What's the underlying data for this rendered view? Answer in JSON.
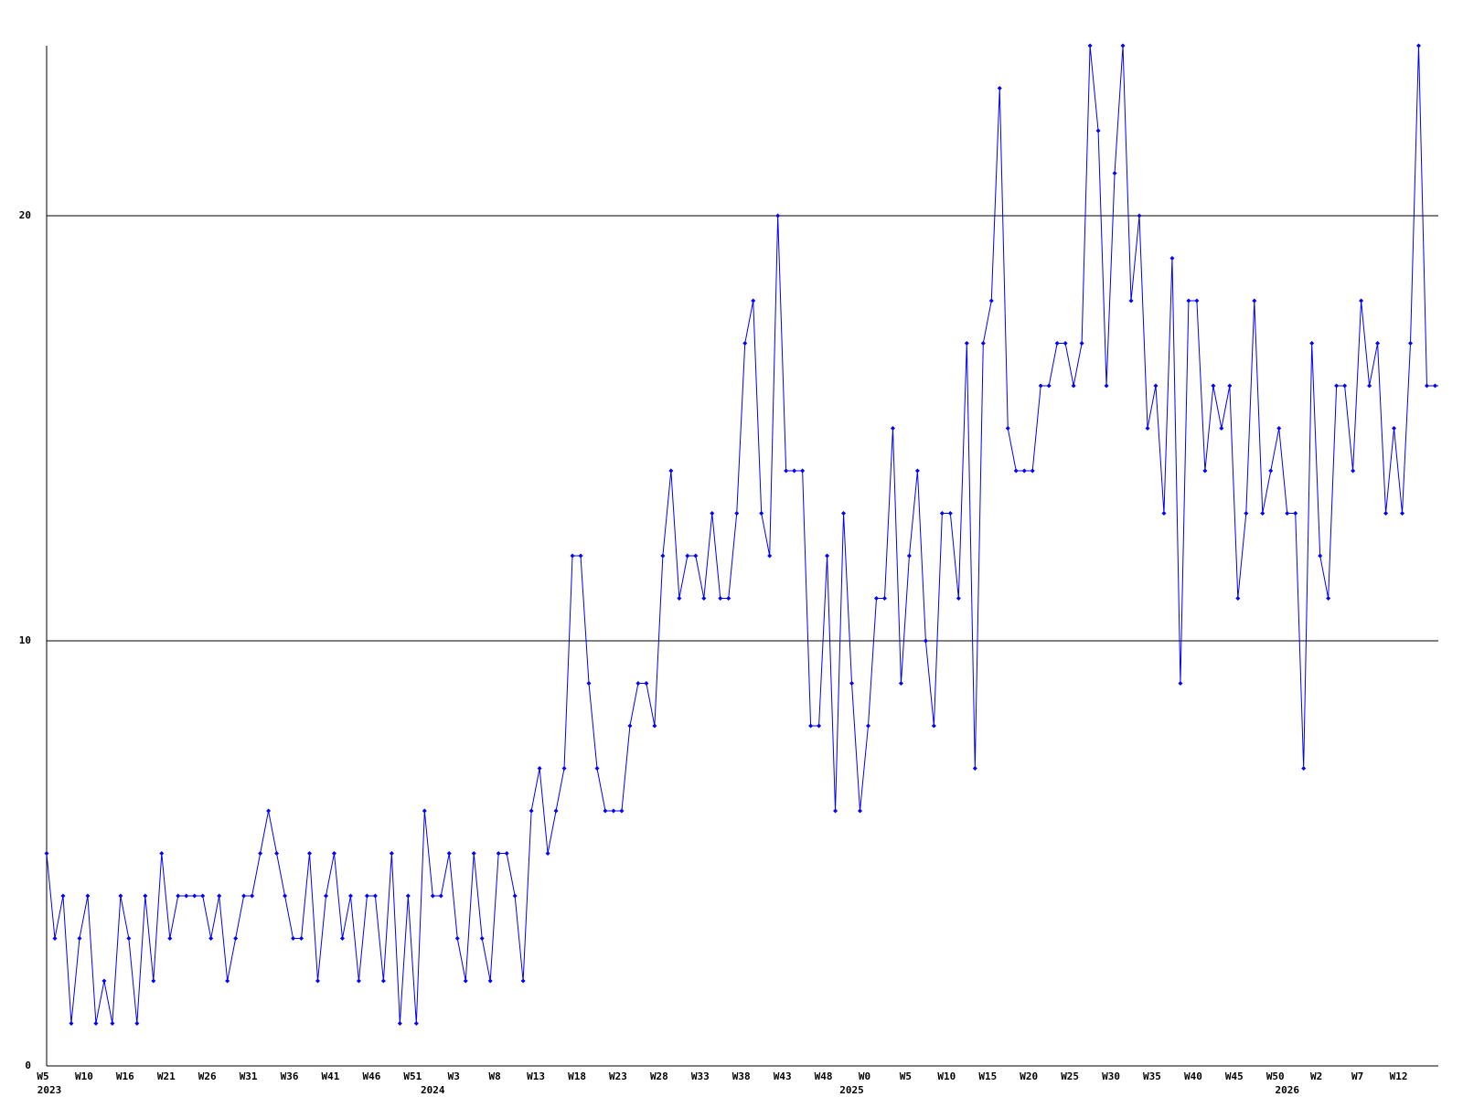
{
  "chart_data": {
    "type": "line",
    "color": "#0000ff",
    "grid": true,
    "ylim": [
      0,
      24
    ],
    "yticks": [
      0,
      10,
      20
    ],
    "categories": [
      "W5",
      null,
      null,
      null,
      null,
      "W10",
      null,
      null,
      null,
      null,
      "W16",
      null,
      null,
      null,
      null,
      "W21",
      null,
      null,
      null,
      null,
      "W26",
      null,
      null,
      null,
      null,
      "W31",
      null,
      null,
      null,
      null,
      "W36",
      null,
      null,
      null,
      null,
      "W41",
      null,
      null,
      null,
      null,
      "W46",
      null,
      null,
      null,
      null,
      "W51",
      null,
      null,
      null,
      null,
      "W3",
      null,
      null,
      null,
      null,
      "W8",
      null,
      null,
      null,
      null,
      "W13",
      null,
      null,
      null,
      null,
      "W18",
      null,
      null,
      null,
      null,
      "W23",
      null,
      null,
      null,
      null,
      "W28",
      null,
      null,
      null,
      null,
      "W33",
      null,
      null,
      null,
      null,
      "W38",
      null,
      null,
      null,
      null,
      "W43",
      null,
      null,
      null,
      null,
      "W48",
      null,
      null,
      null,
      null,
      "W0",
      null,
      null,
      null,
      null,
      "W5",
      null,
      null,
      null,
      null,
      "W10",
      null,
      null,
      null,
      null,
      "W15",
      null,
      null,
      null,
      null,
      "W20",
      null,
      null,
      null,
      null,
      "W25",
      null,
      null,
      null,
      null,
      "W30",
      null,
      null,
      null,
      null,
      "W35",
      null,
      null,
      null,
      null,
      "W40",
      null,
      null,
      null,
      null,
      "W45",
      null,
      null,
      null,
      null,
      "W50",
      null,
      null,
      null,
      null,
      "W2",
      null,
      null,
      null,
      null,
      "W7",
      null,
      null,
      null,
      null,
      "W12",
      null,
      null,
      null,
      null
    ],
    "years": [
      "2023",
      null,
      null,
      null,
      null,
      null,
      null,
      null,
      null,
      null,
      null,
      null,
      null,
      null,
      null,
      null,
      null,
      null,
      null,
      null,
      null,
      null,
      null,
      null,
      null,
      null,
      null,
      null,
      null,
      null,
      null,
      null,
      null,
      null,
      null,
      null,
      null,
      null,
      null,
      null,
      null,
      null,
      null,
      null,
      null,
      null,
      null,
      "2024",
      null,
      null,
      null,
      null,
      null,
      null,
      null,
      null,
      null,
      null,
      null,
      null,
      null,
      null,
      null,
      null,
      null,
      null,
      null,
      null,
      null,
      null,
      null,
      null,
      null,
      null,
      null,
      null,
      null,
      null,
      null,
      null,
      null,
      null,
      null,
      null,
      null,
      null,
      null,
      null,
      null,
      null,
      null,
      null,
      null,
      null,
      null,
      null,
      null,
      null,
      "2025",
      null,
      null,
      null,
      null,
      null,
      null,
      null,
      null,
      null,
      null,
      null,
      null,
      null,
      null,
      null,
      null,
      null,
      null,
      null,
      null,
      null,
      null,
      null,
      null,
      null,
      null,
      null,
      null,
      null,
      null,
      null,
      null,
      null,
      null,
      null,
      null,
      null,
      null,
      null,
      null,
      null,
      null,
      null,
      null,
      null,
      null,
      null,
      null,
      null,
      null,
      null,
      null,
      "2026",
      null,
      null,
      null,
      null,
      null,
      null,
      null,
      null,
      null,
      null,
      null,
      null,
      null,
      null,
      null,
      null
    ],
    "values": [
      5,
      3,
      4,
      1,
      3,
      4,
      1,
      2,
      1,
      4,
      3,
      1,
      4,
      2,
      5,
      3,
      4,
      4,
      4,
      4,
      3,
      4,
      2,
      3,
      4,
      4,
      5,
      6,
      5,
      4,
      3,
      3,
      5,
      2,
      4,
      5,
      3,
      4,
      2,
      4,
      4,
      2,
      5,
      1,
      4,
      1,
      6,
      4,
      4,
      5,
      3,
      2,
      5,
      3,
      2,
      5,
      5,
      4,
      2,
      6,
      7,
      5,
      6,
      7,
      12,
      12,
      9,
      7,
      6,
      6,
      6,
      8,
      9,
      9,
      8,
      12,
      14,
      11,
      12,
      12,
      11,
      13,
      11,
      11,
      13,
      17,
      18,
      13,
      12,
      20,
      14,
      14,
      14,
      8,
      8,
      12,
      6,
      13,
      9,
      6,
      8,
      11,
      11,
      15,
      9,
      12,
      14,
      10,
      8,
      13,
      13,
      11,
      17,
      7,
      17,
      18,
      23,
      15,
      14,
      14,
      14,
      16,
      16,
      17,
      17,
      16,
      17,
      24,
      22,
      16,
      21,
      24,
      18,
      20,
      15,
      16,
      13,
      19,
      9,
      18,
      18,
      14,
      16,
      15,
      16,
      11,
      13,
      18,
      13,
      14,
      15,
      13,
      13,
      7,
      17,
      12,
      11,
      16,
      16,
      14,
      18,
      16,
      17,
      13,
      15,
      13,
      17,
      24,
      16,
      16
    ]
  }
}
